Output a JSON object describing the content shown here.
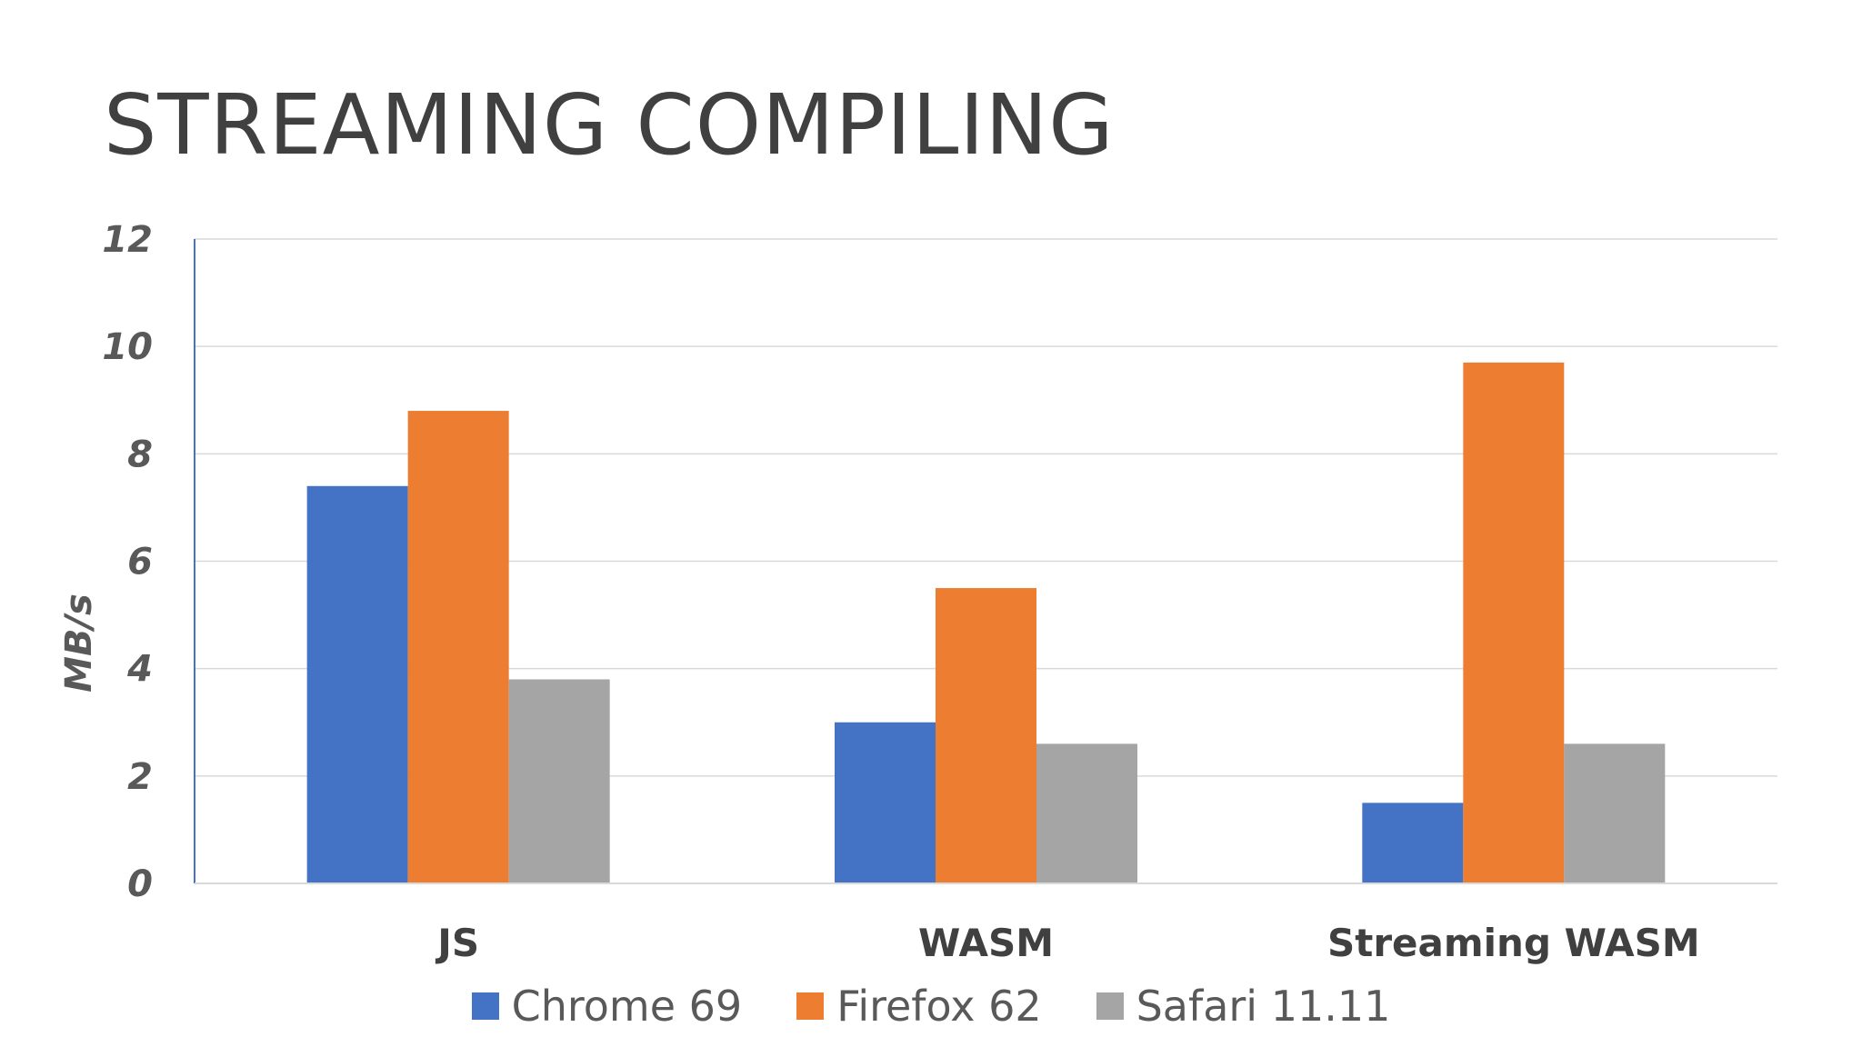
{
  "slide": {
    "title": "STREAMING COMPILING"
  },
  "chart_data": {
    "type": "bar",
    "categories": [
      "JS",
      "WASM",
      "Streaming WASM"
    ],
    "series": [
      {
        "name": "Chrome 69",
        "color": "#4472C4",
        "values": [
          7.4,
          3.0,
          1.5
        ]
      },
      {
        "name": "Firefox 62",
        "color": "#ED7D31",
        "values": [
          8.8,
          5.5,
          9.7
        ]
      },
      {
        "name": "Safari 11.11",
        "color": "#A5A5A5",
        "values": [
          3.8,
          2.6,
          2.6
        ]
      }
    ],
    "title": "",
    "xlabel": "",
    "ylabel": "MB/s",
    "ylim": [
      0,
      12
    ],
    "yticks": [
      0,
      2,
      4,
      6,
      8,
      10,
      12
    ],
    "grid": true,
    "legend_position": "bottom"
  }
}
